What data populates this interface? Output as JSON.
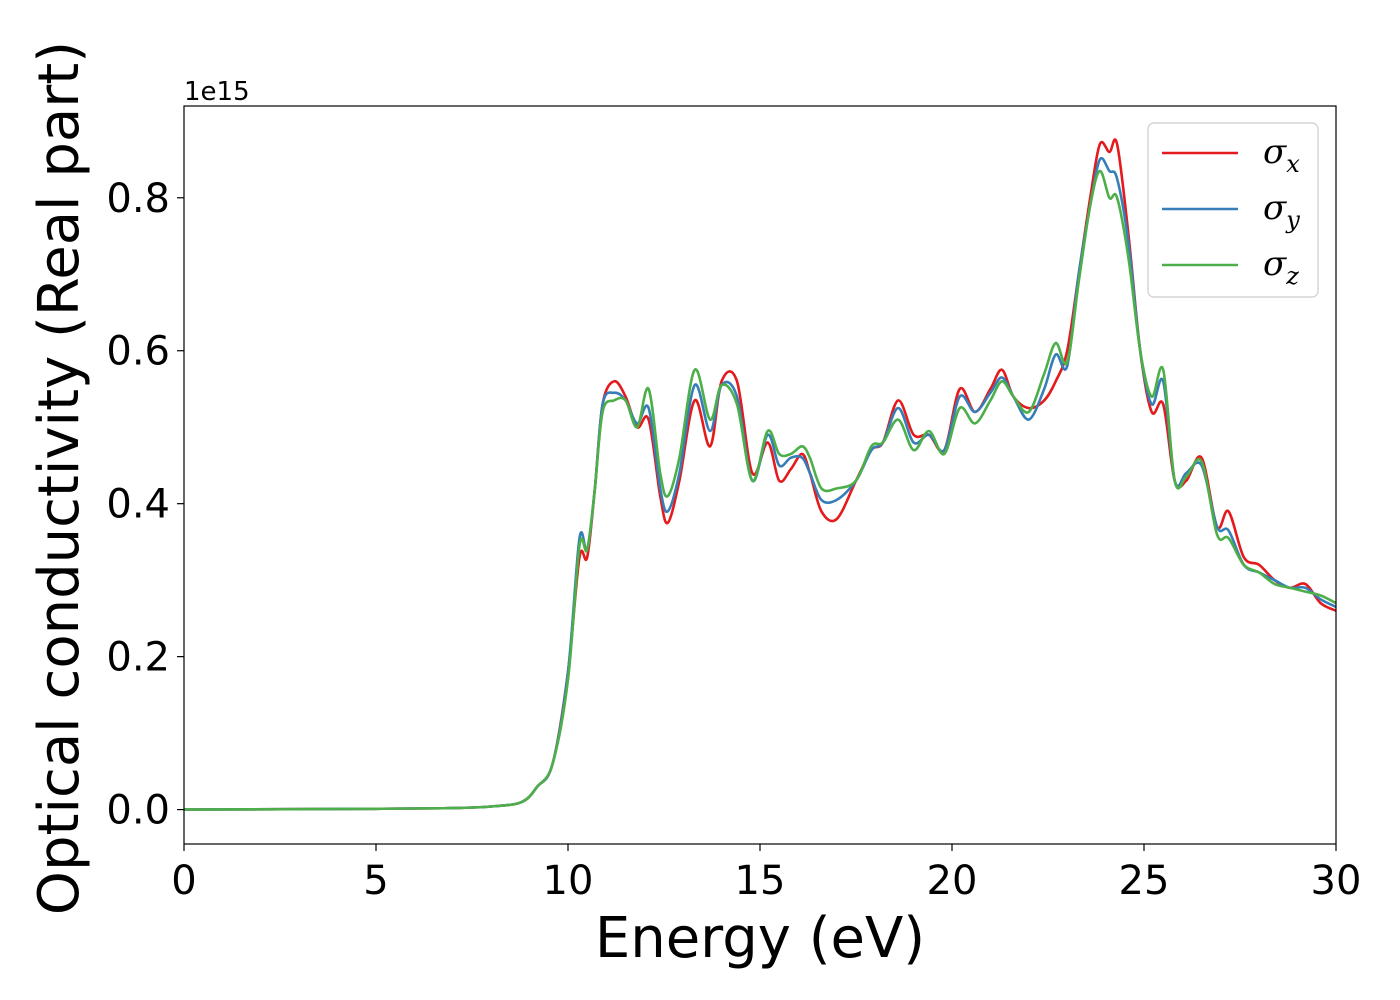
{
  "chart_data": {
    "type": "line",
    "xlabel": "Energy (eV)",
    "ylabel": "Optical conductivity (Real part)",
    "y_offset_label": "1e15",
    "xlim": [
      0,
      30
    ],
    "ylim": [
      -0.045,
      0.92
    ],
    "x_ticks": [
      0,
      5,
      10,
      15,
      20,
      25,
      30
    ],
    "x_tick_labels": [
      "0",
      "5",
      "10",
      "15",
      "20",
      "25",
      "30"
    ],
    "y_ticks": [
      0.0,
      0.2,
      0.4,
      0.6,
      0.8
    ],
    "y_tick_labels": [
      "0.0",
      "0.2",
      "0.4",
      "0.6",
      "0.8"
    ],
    "grid": false,
    "legend_placement": "top-right",
    "series": [
      {
        "name": "σx",
        "symbol": "σ",
        "sub": "x",
        "color": "#e41a1c",
        "points": [
          [
            0,
            0
          ],
          [
            5,
            0.001
          ],
          [
            7,
            0.002
          ],
          [
            8,
            0.004
          ],
          [
            8.8,
            0.01
          ],
          [
            9.2,
            0.03
          ],
          [
            9.6,
            0.06
          ],
          [
            10,
            0.18
          ],
          [
            10.3,
            0.33
          ],
          [
            10.5,
            0.33
          ],
          [
            10.7,
            0.42
          ],
          [
            10.9,
            0.53
          ],
          [
            11.2,
            0.56
          ],
          [
            11.5,
            0.54
          ],
          [
            11.8,
            0.5
          ],
          [
            12.1,
            0.51
          ],
          [
            12.4,
            0.41
          ],
          [
            12.6,
            0.375
          ],
          [
            12.9,
            0.43
          ],
          [
            13.3,
            0.535
          ],
          [
            13.7,
            0.475
          ],
          [
            14,
            0.56
          ],
          [
            14.4,
            0.56
          ],
          [
            14.8,
            0.44
          ],
          [
            15.2,
            0.48
          ],
          [
            15.5,
            0.43
          ],
          [
            15.8,
            0.445
          ],
          [
            16.1,
            0.465
          ],
          [
            16.3,
            0.44
          ],
          [
            16.6,
            0.39
          ],
          [
            17,
            0.38
          ],
          [
            17.5,
            0.43
          ],
          [
            17.9,
            0.47
          ],
          [
            18.2,
            0.48
          ],
          [
            18.6,
            0.535
          ],
          [
            19,
            0.49
          ],
          [
            19.4,
            0.49
          ],
          [
            19.8,
            0.47
          ],
          [
            20.2,
            0.55
          ],
          [
            20.6,
            0.52
          ],
          [
            21,
            0.55
          ],
          [
            21.3,
            0.575
          ],
          [
            21.6,
            0.54
          ],
          [
            22,
            0.525
          ],
          [
            22.4,
            0.535
          ],
          [
            22.7,
            0.56
          ],
          [
            23,
            0.6
          ],
          [
            23.3,
            0.7
          ],
          [
            23.6,
            0.8
          ],
          [
            23.85,
            0.87
          ],
          [
            24.1,
            0.86
          ],
          [
            24.3,
            0.87
          ],
          [
            24.6,
            0.75
          ],
          [
            24.9,
            0.6
          ],
          [
            25.2,
            0.52
          ],
          [
            25.5,
            0.53
          ],
          [
            25.8,
            0.43
          ],
          [
            26.1,
            0.43
          ],
          [
            26.5,
            0.46
          ],
          [
            26.9,
            0.37
          ],
          [
            27.2,
            0.39
          ],
          [
            27.6,
            0.33
          ],
          [
            28,
            0.32
          ],
          [
            28.4,
            0.3
          ],
          [
            28.8,
            0.29
          ],
          [
            29.2,
            0.295
          ],
          [
            29.6,
            0.27
          ],
          [
            30,
            0.26
          ]
        ]
      },
      {
        "name": "σy",
        "symbol": "σ",
        "sub": "y",
        "color": "#377eb8",
        "points": [
          [
            0,
            0
          ],
          [
            5,
            0.001
          ],
          [
            7,
            0.002
          ],
          [
            8,
            0.004
          ],
          [
            8.8,
            0.01
          ],
          [
            9.2,
            0.03
          ],
          [
            9.6,
            0.06
          ],
          [
            10,
            0.18
          ],
          [
            10.3,
            0.355
          ],
          [
            10.5,
            0.34
          ],
          [
            10.7,
            0.42
          ],
          [
            10.9,
            0.53
          ],
          [
            11.2,
            0.545
          ],
          [
            11.5,
            0.535
          ],
          [
            11.8,
            0.505
          ],
          [
            12.1,
            0.525
          ],
          [
            12.4,
            0.42
          ],
          [
            12.6,
            0.39
          ],
          [
            12.9,
            0.44
          ],
          [
            13.3,
            0.555
          ],
          [
            13.7,
            0.495
          ],
          [
            14,
            0.555
          ],
          [
            14.4,
            0.54
          ],
          [
            14.8,
            0.43
          ],
          [
            15.2,
            0.49
          ],
          [
            15.5,
            0.45
          ],
          [
            15.8,
            0.46
          ],
          [
            16.1,
            0.46
          ],
          [
            16.3,
            0.44
          ],
          [
            16.6,
            0.405
          ],
          [
            17,
            0.405
          ],
          [
            17.5,
            0.43
          ],
          [
            17.9,
            0.47
          ],
          [
            18.2,
            0.48
          ],
          [
            18.6,
            0.525
          ],
          [
            19,
            0.48
          ],
          [
            19.4,
            0.49
          ],
          [
            19.8,
            0.47
          ],
          [
            20.2,
            0.54
          ],
          [
            20.6,
            0.52
          ],
          [
            21,
            0.545
          ],
          [
            21.3,
            0.565
          ],
          [
            21.6,
            0.54
          ],
          [
            22,
            0.51
          ],
          [
            22.4,
            0.55
          ],
          [
            22.7,
            0.595
          ],
          [
            23,
            0.58
          ],
          [
            23.3,
            0.7
          ],
          [
            23.6,
            0.79
          ],
          [
            23.85,
            0.85
          ],
          [
            24.1,
            0.835
          ],
          [
            24.3,
            0.825
          ],
          [
            24.6,
            0.74
          ],
          [
            24.9,
            0.6
          ],
          [
            25.2,
            0.53
          ],
          [
            25.5,
            0.56
          ],
          [
            25.8,
            0.43
          ],
          [
            26.1,
            0.44
          ],
          [
            26.5,
            0.45
          ],
          [
            26.9,
            0.37
          ],
          [
            27.2,
            0.365
          ],
          [
            27.6,
            0.32
          ],
          [
            28,
            0.31
          ],
          [
            28.4,
            0.3
          ],
          [
            28.8,
            0.29
          ],
          [
            29.2,
            0.29
          ],
          [
            29.6,
            0.275
          ],
          [
            30,
            0.265
          ]
        ]
      },
      {
        "name": "σz",
        "symbol": "σ",
        "sub": "z",
        "color": "#4daf4a",
        "points": [
          [
            0,
            0
          ],
          [
            5,
            0.001
          ],
          [
            7,
            0.002
          ],
          [
            8,
            0.004
          ],
          [
            8.8,
            0.01
          ],
          [
            9.2,
            0.03
          ],
          [
            9.6,
            0.06
          ],
          [
            10,
            0.17
          ],
          [
            10.3,
            0.345
          ],
          [
            10.5,
            0.34
          ],
          [
            10.7,
            0.42
          ],
          [
            10.9,
            0.52
          ],
          [
            11.2,
            0.535
          ],
          [
            11.5,
            0.535
          ],
          [
            11.8,
            0.5
          ],
          [
            12.1,
            0.55
          ],
          [
            12.4,
            0.44
          ],
          [
            12.6,
            0.41
          ],
          [
            12.9,
            0.46
          ],
          [
            13.3,
            0.575
          ],
          [
            13.7,
            0.51
          ],
          [
            14,
            0.555
          ],
          [
            14.4,
            0.53
          ],
          [
            14.8,
            0.43
          ],
          [
            15.2,
            0.495
          ],
          [
            15.5,
            0.465
          ],
          [
            15.8,
            0.465
          ],
          [
            16.1,
            0.475
          ],
          [
            16.3,
            0.46
          ],
          [
            16.6,
            0.42
          ],
          [
            17,
            0.42
          ],
          [
            17.5,
            0.43
          ],
          [
            17.9,
            0.475
          ],
          [
            18.2,
            0.48
          ],
          [
            18.6,
            0.51
          ],
          [
            19,
            0.47
          ],
          [
            19.4,
            0.495
          ],
          [
            19.8,
            0.465
          ],
          [
            20.2,
            0.525
          ],
          [
            20.6,
            0.505
          ],
          [
            21,
            0.535
          ],
          [
            21.3,
            0.56
          ],
          [
            21.6,
            0.54
          ],
          [
            22,
            0.52
          ],
          [
            22.4,
            0.57
          ],
          [
            22.7,
            0.61
          ],
          [
            23,
            0.585
          ],
          [
            23.3,
            0.69
          ],
          [
            23.6,
            0.79
          ],
          [
            23.85,
            0.835
          ],
          [
            24.1,
            0.8
          ],
          [
            24.3,
            0.8
          ],
          [
            24.6,
            0.72
          ],
          [
            24.9,
            0.6
          ],
          [
            25.2,
            0.54
          ],
          [
            25.5,
            0.575
          ],
          [
            25.8,
            0.43
          ],
          [
            26.1,
            0.435
          ],
          [
            26.5,
            0.455
          ],
          [
            26.9,
            0.36
          ],
          [
            27.2,
            0.355
          ],
          [
            27.6,
            0.32
          ],
          [
            28,
            0.31
          ],
          [
            28.4,
            0.295
          ],
          [
            28.8,
            0.29
          ],
          [
            29.2,
            0.285
          ],
          [
            29.6,
            0.28
          ],
          [
            30,
            0.27
          ]
        ]
      }
    ]
  }
}
